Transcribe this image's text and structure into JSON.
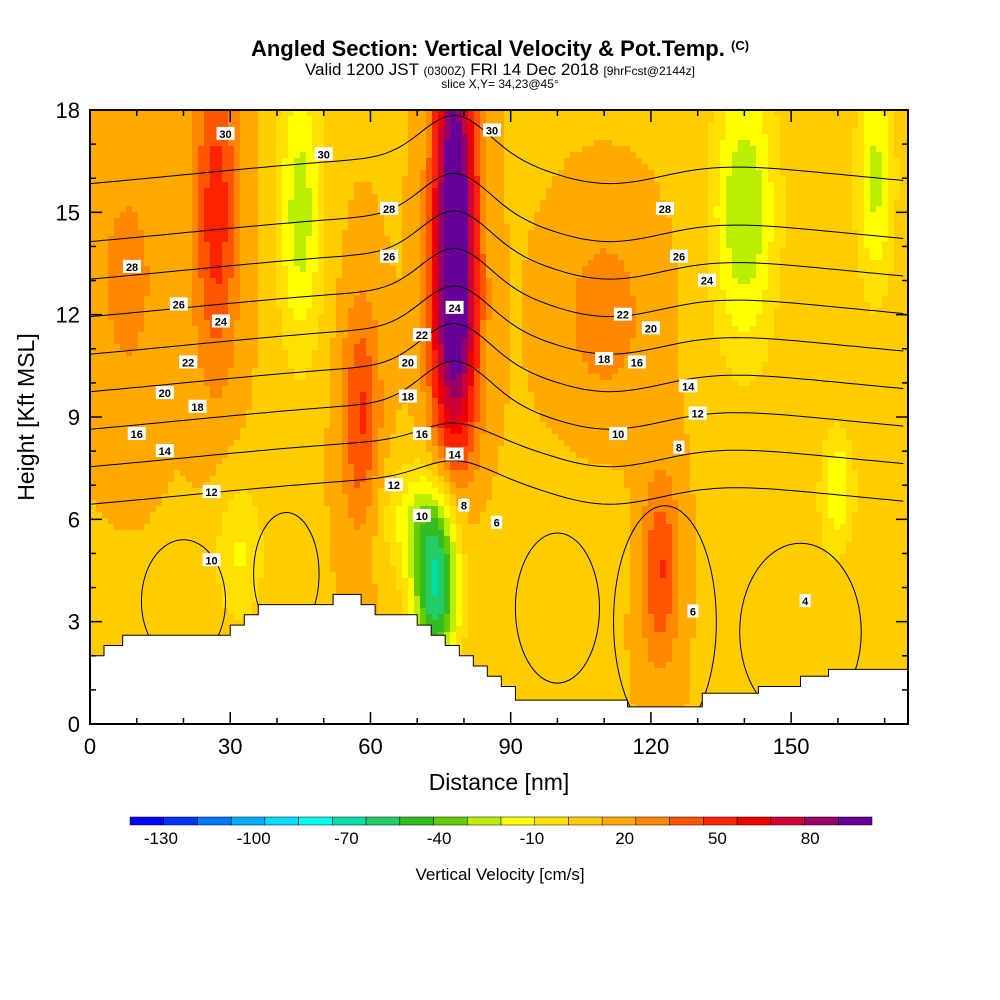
{
  "chart_data": {
    "type": "heatmap",
    "title": "Angled Section: Vertical Velocity & Pot.Temp.",
    "title_units": "(C)",
    "subtitle": {
      "valid": "Valid 1200 JST",
      "utc": "(0300Z)",
      "date": "FRI 14 Dec 2018",
      "fcst": "[9hrFcst@2144z]"
    },
    "slice": "slice X,Y= 34,23@45°",
    "xlabel": "Distance [nm]",
    "ylabel": "Height [Kft MSL]",
    "xlim": [
      0,
      175
    ],
    "ylim": [
      0,
      18
    ],
    "x_ticks": [
      "0",
      "30",
      "60",
      "90",
      "120",
      "150"
    ],
    "y_ticks": [
      "0",
      "3",
      "6",
      "9",
      "12",
      "15",
      "18"
    ],
    "colorbar": {
      "title": "Vertical Velocity [cm/s]",
      "labels": [
        "-130",
        "-100",
        "-70",
        "-40",
        "-10",
        "20",
        "50",
        "80"
      ],
      "range": [
        -140,
        100
      ],
      "colors": [
        "#0000ff",
        "#0033ff",
        "#0077ff",
        "#00aaff",
        "#00ddff",
        "#00ffee",
        "#00ddaa",
        "#22cc66",
        "#33bb22",
        "#66cc00",
        "#bbee00",
        "#ffff00",
        "#ffe000",
        "#ffcc00",
        "#ffaa00",
        "#ff8800",
        "#ff5500",
        "#ff2200",
        "#ee0000",
        "#cc0033",
        "#990066",
        "#660099"
      ]
    },
    "terrain": [
      [
        0,
        2
      ],
      [
        3,
        2
      ],
      [
        3,
        2.3
      ],
      [
        7,
        2.3
      ],
      [
        7,
        2.6
      ],
      [
        30,
        2.6
      ],
      [
        30,
        2.9
      ],
      [
        33,
        2.9
      ],
      [
        33,
        3.2
      ],
      [
        36,
        3.2
      ],
      [
        36,
        3.5
      ],
      [
        52,
        3.5
      ],
      [
        52,
        3.8
      ],
      [
        58,
        3.8
      ],
      [
        58,
        3.5
      ],
      [
        61,
        3.5
      ],
      [
        61,
        3.2
      ],
      [
        70,
        3.2
      ],
      [
        70,
        2.9
      ],
      [
        73,
        2.9
      ],
      [
        73,
        2.6
      ],
      [
        76,
        2.6
      ],
      [
        76,
        2.3
      ],
      [
        79,
        2.3
      ],
      [
        79,
        2.0
      ],
      [
        82,
        2.0
      ],
      [
        82,
        1.7
      ],
      [
        85,
        1.7
      ],
      [
        85,
        1.4
      ],
      [
        88,
        1.4
      ],
      [
        88,
        1.1
      ],
      [
        91,
        1.1
      ],
      [
        91,
        0.7
      ],
      [
        115,
        0.7
      ],
      [
        115,
        0.5
      ],
      [
        131,
        0.5
      ],
      [
        131,
        0.9
      ],
      [
        143,
        0.9
      ],
      [
        143,
        1.1
      ],
      [
        152,
        1.1
      ],
      [
        152,
        1.4
      ],
      [
        158,
        1.4
      ],
      [
        158,
        1.6
      ],
      [
        175,
        1.6
      ]
    ],
    "field_blobs": [
      {
        "x": 78,
        "y": 15.5,
        "sx": 3.2,
        "sy": 4.5,
        "v": 85
      },
      {
        "x": 78,
        "y": 11.5,
        "sx": 4,
        "sy": 3,
        "v": 40
      },
      {
        "x": 58,
        "y": 9,
        "sx": 3,
        "sy": 2.5,
        "v": 35
      },
      {
        "x": 27,
        "y": 15,
        "sx": 3.5,
        "sy": 3.5,
        "v": 40
      },
      {
        "x": 122,
        "y": 4.5,
        "sx": 3,
        "sy": 2,
        "v": 35
      },
      {
        "x": 8,
        "y": 13,
        "sx": 6,
        "sy": 3,
        "v": 15
      },
      {
        "x": 110,
        "y": 12,
        "sx": 7,
        "sy": 2,
        "v": 18
      },
      {
        "x": 45,
        "y": 15,
        "sx": 3.5,
        "sy": 3,
        "v": -38
      },
      {
        "x": 140,
        "y": 15,
        "sx": 5,
        "sy": 3,
        "v": -42
      },
      {
        "x": 168,
        "y": 16,
        "sx": 3,
        "sy": 2.5,
        "v": -35
      },
      {
        "x": 74,
        "y": 4,
        "sx": 3.5,
        "sy": 1.8,
        "v": -75
      },
      {
        "x": 70,
        "y": 6,
        "sx": 6,
        "sy": 1.2,
        "v": -25
      },
      {
        "x": 160,
        "y": 7,
        "sx": 2.5,
        "sy": 1.2,
        "v": -30
      },
      {
        "x": 32,
        "y": 5,
        "sx": 4,
        "sy": 1.6,
        "v": -22
      },
      {
        "x": 100,
        "y": 5,
        "sx": 10,
        "sy": 1.5,
        "v": -6
      },
      {
        "x": 150,
        "y": 4,
        "sx": 10,
        "sy": 2,
        "v": -8
      }
    ],
    "theta_levels": [
      4,
      6,
      8,
      10,
      12,
      14,
      16,
      18,
      20,
      22,
      24,
      26,
      28,
      30
    ],
    "contour_labels": [
      {
        "x": 29,
        "y": 17.3,
        "t": "30"
      },
      {
        "x": 50,
        "y": 16.7,
        "t": "30"
      },
      {
        "x": 86,
        "y": 17.4,
        "t": "30"
      },
      {
        "x": 9,
        "y": 13.4,
        "t": "28"
      },
      {
        "x": 64,
        "y": 15.1,
        "t": "28"
      },
      {
        "x": 123,
        "y": 15.1,
        "t": "28"
      },
      {
        "x": 19,
        "y": 12.3,
        "t": "26"
      },
      {
        "x": 64,
        "y": 13.7,
        "t": "26"
      },
      {
        "x": 126,
        "y": 13.7,
        "t": "26"
      },
      {
        "x": 28,
        "y": 11.8,
        "t": "24"
      },
      {
        "x": 78,
        "y": 12.2,
        "t": "24"
      },
      {
        "x": 132,
        "y": 13.0,
        "t": "24"
      },
      {
        "x": 21,
        "y": 10.6,
        "t": "22"
      },
      {
        "x": 71,
        "y": 11.4,
        "t": "22"
      },
      {
        "x": 114,
        "y": 12.0,
        "t": "22"
      },
      {
        "x": 16,
        "y": 9.7,
        "t": "20"
      },
      {
        "x": 68,
        "y": 10.6,
        "t": "20"
      },
      {
        "x": 120,
        "y": 11.6,
        "t": "20"
      },
      {
        "x": 23,
        "y": 9.3,
        "t": "18"
      },
      {
        "x": 68,
        "y": 9.6,
        "t": "18"
      },
      {
        "x": 110,
        "y": 10.7,
        "t": "18"
      },
      {
        "x": 10,
        "y": 8.5,
        "t": "16"
      },
      {
        "x": 71,
        "y": 8.5,
        "t": "16"
      },
      {
        "x": 117,
        "y": 10.6,
        "t": "16"
      },
      {
        "x": 16,
        "y": 8.0,
        "t": "14"
      },
      {
        "x": 78,
        "y": 7.9,
        "t": "14"
      },
      {
        "x": 128,
        "y": 9.9,
        "t": "14"
      },
      {
        "x": 26,
        "y": 6.8,
        "t": "12"
      },
      {
        "x": 65,
        "y": 7.0,
        "t": "12"
      },
      {
        "x": 130,
        "y": 9.1,
        "t": "12"
      },
      {
        "x": 26,
        "y": 4.8,
        "t": "10"
      },
      {
        "x": 71,
        "y": 6.1,
        "t": "10"
      },
      {
        "x": 113,
        "y": 8.5,
        "t": "10"
      },
      {
        "x": 80,
        "y": 6.4,
        "t": "8"
      },
      {
        "x": 126,
        "y": 8.1,
        "t": "8"
      },
      {
        "x": 87,
        "y": 5.9,
        "t": "6"
      },
      {
        "x": 129,
        "y": 3.3,
        "t": "6"
      },
      {
        "x": 153,
        "y": 3.6,
        "t": "4"
      }
    ]
  }
}
